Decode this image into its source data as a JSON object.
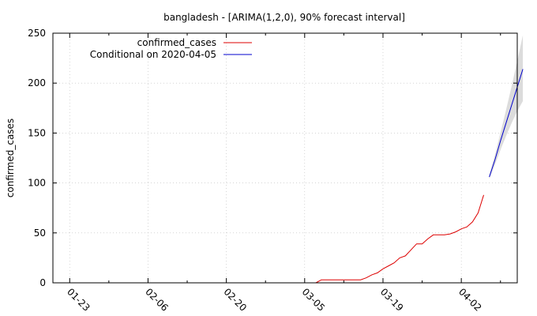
{
  "chart_data": {
    "type": "line",
    "title": "bangladesh -  [ARIMA(1,2,0), 90% forecast interval]",
    "xlabel": "",
    "ylabel": "confirmed_cases",
    "ylim": [
      0,
      250
    ],
    "yticks": [
      0,
      50,
      100,
      150,
      200,
      250
    ],
    "xlim": [
      "2020-01-20",
      "2020-04-12"
    ],
    "xticks": [
      "2020-01-23",
      "2020-02-06",
      "2020-02-20",
      "2020-03-05",
      "2020-03-19",
      "2020-04-02"
    ],
    "xtick_labels": [
      "01-23",
      "02-06",
      "02-20",
      "03-05",
      "03-19",
      "04-02"
    ],
    "grid": true,
    "legend_position": "top-left",
    "series": [
      {
        "name": "confirmed_cases",
        "color": "#dd0000",
        "points": [
          [
            "2020-03-07",
            0
          ],
          [
            "2020-03-08",
            3
          ],
          [
            "2020-03-09",
            3
          ],
          [
            "2020-03-10",
            3
          ],
          [
            "2020-03-11",
            3
          ],
          [
            "2020-03-12",
            3
          ],
          [
            "2020-03-13",
            3
          ],
          [
            "2020-03-14",
            3
          ],
          [
            "2020-03-15",
            3
          ],
          [
            "2020-03-16",
            5
          ],
          [
            "2020-03-17",
            8
          ],
          [
            "2020-03-18",
            10
          ],
          [
            "2020-03-19",
            14
          ],
          [
            "2020-03-20",
            17
          ],
          [
            "2020-03-21",
            20
          ],
          [
            "2020-03-22",
            25
          ],
          [
            "2020-03-23",
            27
          ],
          [
            "2020-03-24",
            33
          ],
          [
            "2020-03-25",
            39
          ],
          [
            "2020-03-26",
            39
          ],
          [
            "2020-03-27",
            44
          ],
          [
            "2020-03-28",
            48
          ],
          [
            "2020-03-29",
            48
          ],
          [
            "2020-03-30",
            48
          ],
          [
            "2020-03-31",
            49
          ],
          [
            "2020-04-01",
            51
          ],
          [
            "2020-04-02",
            54
          ],
          [
            "2020-04-03",
            56
          ],
          [
            "2020-04-04",
            61
          ],
          [
            "2020-04-05",
            70
          ],
          [
            "2020-04-06",
            88
          ]
        ]
      },
      {
        "name": "Conditional on 2020-04-05",
        "color": "#0000cc",
        "points": [
          [
            "2020-04-07",
            106
          ],
          [
            "2020-04-08",
            123
          ],
          [
            "2020-04-09",
            142
          ],
          [
            "2020-04-10",
            160
          ],
          [
            "2020-04-11",
            178
          ],
          [
            "2020-04-12",
            196
          ],
          [
            "2020-04-13",
            214
          ]
        ]
      }
    ],
    "forecast_interval": {
      "level": "90%",
      "color": "#dcdcdc",
      "points": [
        [
          "2020-04-07",
          104,
          108
        ],
        [
          "2020-04-08",
          118,
          128
        ],
        [
          "2020-04-09",
          133,
          150
        ],
        [
          "2020-04-10",
          147,
          173
        ],
        [
          "2020-04-11",
          160,
          197
        ],
        [
          "2020-04-12",
          172,
          222
        ],
        [
          "2020-04-13",
          182,
          248
        ]
      ]
    }
  }
}
